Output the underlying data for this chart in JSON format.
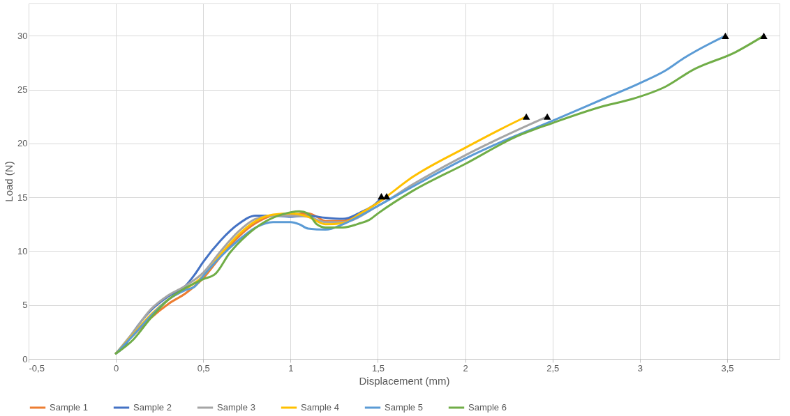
{
  "chart_data": {
    "type": "line",
    "xlabel": "Displacement (mm)",
    "ylabel": "Load (N)",
    "xlim": [
      -0.5,
      3.8
    ],
    "xticks": [
      {
        "value": -0.5,
        "label": "-0,5"
      },
      0,
      {
        "value": 0.5,
        "label": "0,5"
      },
      1,
      {
        "value": 1.5,
        "label": "1,5"
      },
      2,
      {
        "value": 2.5,
        "label": "2,5"
      },
      3,
      {
        "value": 3.5,
        "label": "3,5"
      }
    ],
    "ylim": [
      0,
      33
    ],
    "yticks": [
      0,
      5,
      10,
      15,
      20,
      25,
      30
    ],
    "grid": true,
    "legend": "bottom",
    "marker": "none",
    "line_style": "solid",
    "series": [
      {
        "name": "Sample 1",
        "color": "#ed7d31",
        "x": [
          0,
          0.1,
          0.2,
          0.3,
          0.4,
          0.5,
          0.6,
          0.7,
          0.8,
          0.9,
          1.0,
          1.1,
          1.15,
          1.2,
          1.3,
          1.4,
          1.5,
          1.55
        ],
        "values": [
          0.5,
          2.2,
          3.8,
          5.1,
          6.1,
          7.5,
          9.5,
          11.3,
          12.6,
          13.3,
          13.4,
          13.5,
          13.2,
          12.8,
          12.8,
          13.5,
          14.5,
          15
        ]
      },
      {
        "name": "Sample 2",
        "color": "#4472c4",
        "x": [
          0,
          0.05,
          0.1,
          0.2,
          0.3,
          0.4,
          0.45,
          0.5,
          0.6,
          0.7,
          0.8,
          0.9,
          1.0,
          1.1,
          1.2,
          1.3,
          1.4,
          1.5,
          1.52
        ],
        "values": [
          0.5,
          1.2,
          2.5,
          4.5,
          5.8,
          6.8,
          7.8,
          9,
          11,
          12.5,
          13.3,
          13.3,
          13.2,
          13.3,
          13.1,
          13.0,
          13.6,
          14.6,
          15
        ]
      },
      {
        "name": "Sample 3",
        "color": "#a5a5a5",
        "x": [
          0,
          0.1,
          0.2,
          0.3,
          0.4,
          0.5,
          0.6,
          0.7,
          0.8,
          0.9,
          1.0,
          1.1,
          1.2,
          1.3,
          1.5,
          1.7,
          2.0,
          2.2,
          2.47
        ],
        "values": [
          0.5,
          2.5,
          4.6,
          5.9,
          6.8,
          8,
          10,
          11.8,
          13,
          13.3,
          13.3,
          13.2,
          12.7,
          12.7,
          14.2,
          16.2,
          18.9,
          20.5,
          22.5
        ]
      },
      {
        "name": "Sample 4",
        "color": "#ffc000",
        "x": [
          0,
          0.1,
          0.2,
          0.3,
          0.4,
          0.5,
          0.6,
          0.7,
          0.8,
          0.9,
          1.0,
          1.1,
          1.2,
          1.3,
          1.4,
          1.5,
          1.7,
          2.0,
          2.2,
          2.35
        ],
        "values": [
          0.5,
          2.3,
          4.1,
          5.5,
          6.5,
          7.7,
          9.7,
          11.5,
          12.8,
          13.4,
          13.5,
          13.2,
          12.5,
          12.6,
          13.5,
          14.5,
          16.9,
          19.6,
          21.3,
          22.5
        ]
      },
      {
        "name": "Sample 5",
        "color": "#5b9bd5",
        "x": [
          0,
          0.1,
          0.2,
          0.3,
          0.4,
          0.45,
          0.5,
          0.6,
          0.7,
          0.8,
          0.9,
          1.0,
          1.05,
          1.1,
          1.2,
          1.3,
          1.4,
          1.5,
          1.7,
          2.0,
          2.2,
          2.5,
          2.8,
          3.0,
          3.15,
          3.25,
          3.49
        ],
        "values": [
          0.5,
          2.2,
          4.0,
          5.5,
          6.4,
          6.7,
          7.7,
          9.5,
          11,
          12.2,
          12.7,
          12.7,
          12.5,
          12.1,
          12.0,
          12.5,
          13.3,
          14.2,
          16,
          18.6,
          20.1,
          22.1,
          24.2,
          25.6,
          26.8,
          27.9,
          30
        ]
      },
      {
        "name": "Sample 6",
        "color": "#70ad47",
        "x": [
          0,
          0.1,
          0.2,
          0.3,
          0.4,
          0.5,
          0.57,
          0.65,
          0.75,
          0.85,
          0.95,
          1.05,
          1.1,
          1.15,
          1.2,
          1.3,
          1.4,
          1.45,
          1.5,
          1.7,
          2.0,
          2.3,
          2.5,
          2.8,
          2.95,
          3.15,
          3.3,
          3.55,
          3.71
        ],
        "values": [
          0.5,
          1.8,
          3.8,
          5.5,
          6.6,
          7.4,
          7.9,
          9.8,
          11.5,
          12.7,
          13.4,
          13.7,
          13.5,
          12.5,
          12.2,
          12.2,
          12.6,
          12.9,
          13.5,
          15.6,
          18.1,
          20.7,
          21.9,
          23.5,
          24.1,
          25.3,
          26.8,
          28.5,
          30
        ]
      },
      {
        "type": "scatter",
        "marker": "triangle",
        "color": "#000000",
        "x": [
          1.52,
          1.55,
          2.35,
          2.47,
          3.49,
          3.71
        ],
        "values": [
          15.1,
          15.1,
          22.5,
          22.5,
          30,
          30
        ]
      }
    ]
  }
}
